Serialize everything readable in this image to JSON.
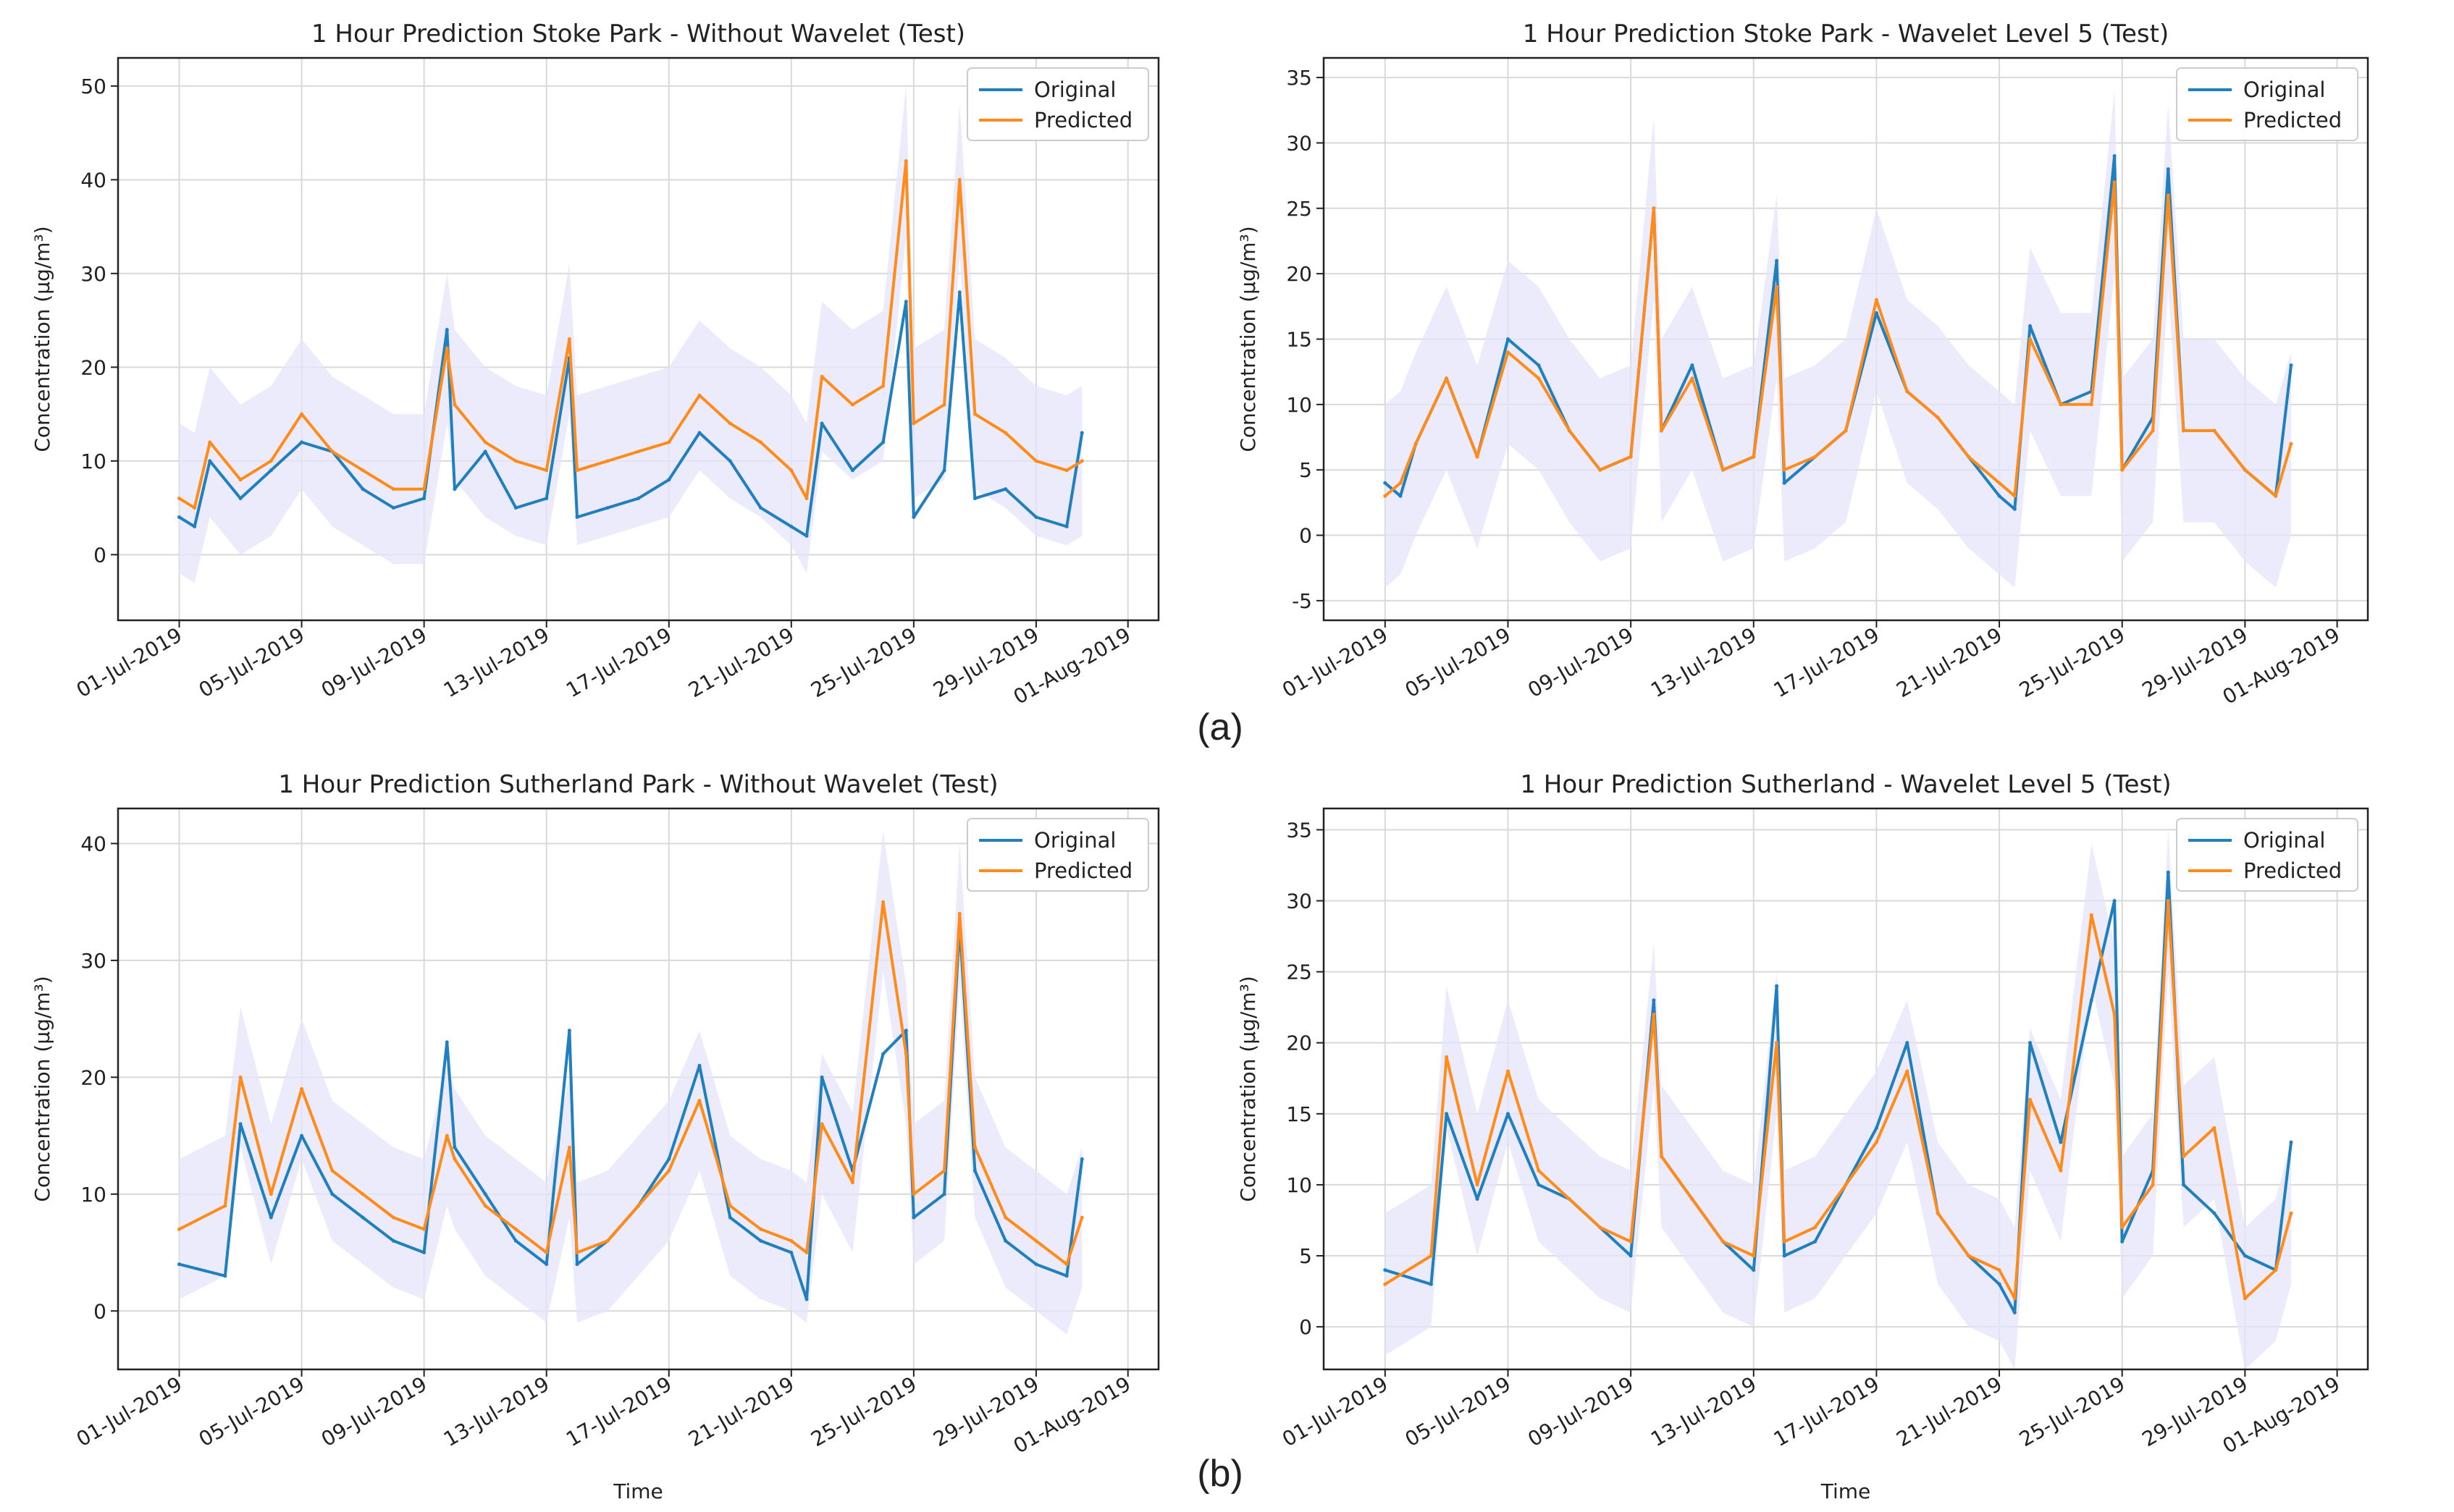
{
  "figure": {
    "panel_labels": [
      "(a)",
      "(b)"
    ],
    "colors": {
      "original": "#1f7fbf",
      "predicted": "#ff8c1a",
      "band": "#e4e4fb"
    }
  },
  "chart_data": [
    {
      "type": "line",
      "title": "1 Hour Prediction Stoke Park - Without Wavelet (Test)",
      "xlabel": "",
      "ylabel": "Concentration (μg/m³)",
      "ylim": [
        -7,
        53
      ],
      "yticks": [
        0,
        10,
        20,
        30,
        40,
        50
      ],
      "xdomain": [
        "2019-06-29",
        "2019-08-02"
      ],
      "xticks": [
        "01-Jul-2019",
        "05-Jul-2019",
        "09-Jul-2019",
        "13-Jul-2019",
        "17-Jul-2019",
        "21-Jul-2019",
        "25-Jul-2019",
        "29-Jul-2019",
        "01-Aug-2019"
      ],
      "grid": true,
      "legend": "top-right",
      "band_width": 8,
      "series": [
        {
          "name": "Original",
          "x": [
            "2019-07-01",
            "2019-07-01T12",
            "2019-07-02",
            "2019-07-03",
            "2019-07-04",
            "2019-07-05",
            "2019-07-06",
            "2019-07-07",
            "2019-07-08",
            "2019-07-09",
            "2019-07-09T18",
            "2019-07-10",
            "2019-07-11",
            "2019-07-12",
            "2019-07-13",
            "2019-07-13T18",
            "2019-07-14",
            "2019-07-15",
            "2019-07-16",
            "2019-07-17",
            "2019-07-18",
            "2019-07-19",
            "2019-07-20",
            "2019-07-21",
            "2019-07-21T12",
            "2019-07-22",
            "2019-07-23",
            "2019-07-24",
            "2019-07-24T18",
            "2019-07-25",
            "2019-07-26",
            "2019-07-26T12",
            "2019-07-27",
            "2019-07-28",
            "2019-07-29",
            "2019-07-30",
            "2019-07-30T12"
          ],
          "values": [
            4,
            3,
            10,
            6,
            9,
            12,
            11,
            7,
            5,
            6,
            24,
            7,
            11,
            5,
            6,
            21,
            4,
            5,
            6,
            8,
            13,
            10,
            5,
            3,
            2,
            14,
            9,
            12,
            27,
            4,
            9,
            28,
            6,
            7,
            4,
            3,
            13
          ]
        },
        {
          "name": "Predicted",
          "x": [
            "2019-07-01",
            "2019-07-01T12",
            "2019-07-02",
            "2019-07-03",
            "2019-07-04",
            "2019-07-05",
            "2019-07-06",
            "2019-07-07",
            "2019-07-08",
            "2019-07-09",
            "2019-07-09T18",
            "2019-07-10",
            "2019-07-11",
            "2019-07-12",
            "2019-07-13",
            "2019-07-13T18",
            "2019-07-14",
            "2019-07-15",
            "2019-07-16",
            "2019-07-17",
            "2019-07-18",
            "2019-07-19",
            "2019-07-20",
            "2019-07-21",
            "2019-07-21T12",
            "2019-07-22",
            "2019-07-23",
            "2019-07-24",
            "2019-07-24T18",
            "2019-07-25",
            "2019-07-26",
            "2019-07-26T12",
            "2019-07-27",
            "2019-07-28",
            "2019-07-29",
            "2019-07-30",
            "2019-07-30T12"
          ],
          "values": [
            6,
            5,
            12,
            8,
            10,
            15,
            11,
            9,
            7,
            7,
            22,
            16,
            12,
            10,
            9,
            23,
            9,
            10,
            11,
            12,
            17,
            14,
            12,
            9,
            6,
            19,
            16,
            18,
            42,
            14,
            16,
            40,
            15,
            13,
            10,
            9,
            10
          ]
        }
      ]
    },
    {
      "type": "line",
      "title": "1 Hour Prediction Stoke Park - Wavelet Level 5 (Test)",
      "xlabel": "",
      "ylabel": "Concentration (μg/m³)",
      "ylim": [
        -6.5,
        36.5
      ],
      "yticks": [
        -5,
        0,
        5,
        10,
        15,
        20,
        25,
        30,
        35
      ],
      "xdomain": [
        "2019-06-29",
        "2019-08-02"
      ],
      "xticks": [
        "01-Jul-2019",
        "05-Jul-2019",
        "09-Jul-2019",
        "13-Jul-2019",
        "17-Jul-2019",
        "21-Jul-2019",
        "25-Jul-2019",
        "29-Jul-2019",
        "01-Aug-2019"
      ],
      "grid": true,
      "legend": "top-right",
      "band_width": 7,
      "series": [
        {
          "name": "Original",
          "x": [
            "2019-07-01",
            "2019-07-01T12",
            "2019-07-02",
            "2019-07-03",
            "2019-07-04",
            "2019-07-05",
            "2019-07-06",
            "2019-07-07",
            "2019-07-08",
            "2019-07-09",
            "2019-07-09T18",
            "2019-07-10",
            "2019-07-11",
            "2019-07-12",
            "2019-07-13",
            "2019-07-13T18",
            "2019-07-14",
            "2019-07-15",
            "2019-07-16",
            "2019-07-17",
            "2019-07-18",
            "2019-07-19",
            "2019-07-20",
            "2019-07-21",
            "2019-07-21T12",
            "2019-07-22",
            "2019-07-23",
            "2019-07-24",
            "2019-07-24T18",
            "2019-07-25",
            "2019-07-26",
            "2019-07-26T12",
            "2019-07-27",
            "2019-07-28",
            "2019-07-29",
            "2019-07-30",
            "2019-07-30T12"
          ],
          "values": [
            4,
            3,
            7,
            12,
            6,
            15,
            13,
            8,
            5,
            6,
            25,
            8,
            13,
            5,
            6,
            21,
            4,
            6,
            8,
            17,
            11,
            9,
            6,
            3,
            2,
            16,
            10,
            11,
            29,
            5,
            9,
            28,
            8,
            8,
            5,
            3,
            13
          ]
        },
        {
          "name": "Predicted",
          "x": [
            "2019-07-01",
            "2019-07-01T12",
            "2019-07-02",
            "2019-07-03",
            "2019-07-04",
            "2019-07-05",
            "2019-07-06",
            "2019-07-07",
            "2019-07-08",
            "2019-07-09",
            "2019-07-09T18",
            "2019-07-10",
            "2019-07-11",
            "2019-07-12",
            "2019-07-13",
            "2019-07-13T18",
            "2019-07-14",
            "2019-07-15",
            "2019-07-16",
            "2019-07-17",
            "2019-07-18",
            "2019-07-19",
            "2019-07-20",
            "2019-07-21",
            "2019-07-21T12",
            "2019-07-22",
            "2019-07-23",
            "2019-07-24",
            "2019-07-24T18",
            "2019-07-25",
            "2019-07-26",
            "2019-07-26T12",
            "2019-07-27",
            "2019-07-28",
            "2019-07-29",
            "2019-07-30",
            "2019-07-30T12"
          ],
          "values": [
            3,
            4,
            7,
            12,
            6,
            14,
            12,
            8,
            5,
            6,
            25,
            8,
            12,
            5,
            6,
            19,
            5,
            6,
            8,
            18,
            11,
            9,
            6,
            4,
            3,
            15,
            10,
            10,
            27,
            5,
            8,
            26,
            8,
            8,
            5,
            3,
            7
          ]
        }
      ]
    },
    {
      "type": "line",
      "title": "1 Hour Prediction Sutherland Park - Without Wavelet (Test)",
      "xlabel": "Time",
      "ylabel": "Concentration (μg/m³)",
      "ylim": [
        -5,
        43
      ],
      "yticks": [
        0,
        10,
        20,
        30,
        40
      ],
      "xdomain": [
        "2019-06-29",
        "2019-08-02"
      ],
      "xticks": [
        "01-Jul-2019",
        "05-Jul-2019",
        "09-Jul-2019",
        "13-Jul-2019",
        "17-Jul-2019",
        "21-Jul-2019",
        "25-Jul-2019",
        "29-Jul-2019",
        "01-Aug-2019"
      ],
      "grid": true,
      "legend": "top-right",
      "band_width": 6,
      "series": [
        {
          "name": "Original",
          "x": [
            "2019-07-01",
            "2019-07-02T12",
            "2019-07-03",
            "2019-07-04",
            "2019-07-05",
            "2019-07-06",
            "2019-07-07",
            "2019-07-08",
            "2019-07-09",
            "2019-07-09T18",
            "2019-07-10",
            "2019-07-11",
            "2019-07-12",
            "2019-07-13",
            "2019-07-13T18",
            "2019-07-14",
            "2019-07-15",
            "2019-07-16",
            "2019-07-17",
            "2019-07-18",
            "2019-07-19",
            "2019-07-20",
            "2019-07-21",
            "2019-07-21T12",
            "2019-07-22",
            "2019-07-23",
            "2019-07-24",
            "2019-07-24T18",
            "2019-07-25",
            "2019-07-26",
            "2019-07-26T12",
            "2019-07-27",
            "2019-07-28",
            "2019-07-29",
            "2019-07-30",
            "2019-07-30T12"
          ],
          "values": [
            4,
            3,
            16,
            8,
            15,
            10,
            8,
            6,
            5,
            23,
            14,
            10,
            6,
            4,
            24,
            4,
            6,
            9,
            13,
            21,
            8,
            6,
            5,
            1,
            20,
            12,
            22,
            24,
            8,
            10,
            33,
            12,
            6,
            4,
            3,
            13
          ]
        },
        {
          "name": "Predicted",
          "x": [
            "2019-07-01",
            "2019-07-02T12",
            "2019-07-03",
            "2019-07-04",
            "2019-07-05",
            "2019-07-06",
            "2019-07-07",
            "2019-07-08",
            "2019-07-09",
            "2019-07-09T18",
            "2019-07-10",
            "2019-07-11",
            "2019-07-12",
            "2019-07-13",
            "2019-07-13T18",
            "2019-07-14",
            "2019-07-15",
            "2019-07-16",
            "2019-07-17",
            "2019-07-18",
            "2019-07-19",
            "2019-07-20",
            "2019-07-21",
            "2019-07-21T12",
            "2019-07-22",
            "2019-07-23",
            "2019-07-24",
            "2019-07-24T18",
            "2019-07-25",
            "2019-07-26",
            "2019-07-26T12",
            "2019-07-27",
            "2019-07-28",
            "2019-07-29",
            "2019-07-30",
            "2019-07-30T12"
          ],
          "values": [
            7,
            9,
            20,
            10,
            19,
            12,
            10,
            8,
            7,
            15,
            13,
            9,
            7,
            5,
            14,
            5,
            6,
            9,
            12,
            18,
            9,
            7,
            6,
            5,
            16,
            11,
            35,
            22,
            10,
            12,
            34,
            14,
            8,
            6,
            4,
            8
          ]
        }
      ]
    },
    {
      "type": "line",
      "title": "1 Hour Prediction Sutherland - Wavelet Level 5 (Test)",
      "xlabel": "Time",
      "ylabel": "Concentration (μg/m³)",
      "ylim": [
        -3,
        36.5
      ],
      "yticks": [
        0,
        5,
        10,
        15,
        20,
        25,
        30,
        35
      ],
      "xdomain": [
        "2019-06-29",
        "2019-08-02"
      ],
      "xticks": [
        "01-Jul-2019",
        "05-Jul-2019",
        "09-Jul-2019",
        "13-Jul-2019",
        "17-Jul-2019",
        "21-Jul-2019",
        "25-Jul-2019",
        "29-Jul-2019",
        "01-Aug-2019"
      ],
      "grid": true,
      "legend": "top-right",
      "band_width": 5,
      "series": [
        {
          "name": "Original",
          "x": [
            "2019-07-01",
            "2019-07-02T12",
            "2019-07-03",
            "2019-07-04",
            "2019-07-05",
            "2019-07-06",
            "2019-07-07",
            "2019-07-08",
            "2019-07-09",
            "2019-07-09T18",
            "2019-07-10",
            "2019-07-11",
            "2019-07-12",
            "2019-07-13",
            "2019-07-13T18",
            "2019-07-14",
            "2019-07-15",
            "2019-07-16",
            "2019-07-17",
            "2019-07-18",
            "2019-07-19",
            "2019-07-20",
            "2019-07-21",
            "2019-07-21T12",
            "2019-07-22",
            "2019-07-23",
            "2019-07-24",
            "2019-07-24T18",
            "2019-07-25",
            "2019-07-26",
            "2019-07-26T12",
            "2019-07-27",
            "2019-07-28",
            "2019-07-29",
            "2019-07-30",
            "2019-07-30T12"
          ],
          "values": [
            4,
            3,
            15,
            9,
            15,
            10,
            9,
            7,
            5,
            23,
            12,
            9,
            6,
            4,
            24,
            5,
            6,
            10,
            14,
            20,
            8,
            5,
            3,
            1,
            20,
            13,
            23,
            30,
            6,
            11,
            32,
            10,
            8,
            5,
            4,
            13
          ]
        },
        {
          "name": "Predicted",
          "x": [
            "2019-07-01",
            "2019-07-02T12",
            "2019-07-03",
            "2019-07-04",
            "2019-07-05",
            "2019-07-06",
            "2019-07-07",
            "2019-07-08",
            "2019-07-09",
            "2019-07-09T18",
            "2019-07-10",
            "2019-07-11",
            "2019-07-12",
            "2019-07-13",
            "2019-07-13T18",
            "2019-07-14",
            "2019-07-15",
            "2019-07-16",
            "2019-07-17",
            "2019-07-18",
            "2019-07-19",
            "2019-07-20",
            "2019-07-21",
            "2019-07-21T12",
            "2019-07-22",
            "2019-07-23",
            "2019-07-24",
            "2019-07-24T18",
            "2019-07-25",
            "2019-07-26",
            "2019-07-26T12",
            "2019-07-27",
            "2019-07-28",
            "2019-07-29",
            "2019-07-30",
            "2019-07-30T12"
          ],
          "values": [
            3,
            5,
            19,
            10,
            18,
            11,
            9,
            7,
            6,
            22,
            12,
            9,
            6,
            5,
            20,
            6,
            7,
            10,
            13,
            18,
            8,
            5,
            4,
            2,
            16,
            11,
            29,
            22,
            7,
            10,
            30,
            12,
            14,
            2,
            4,
            8
          ]
        }
      ]
    }
  ]
}
